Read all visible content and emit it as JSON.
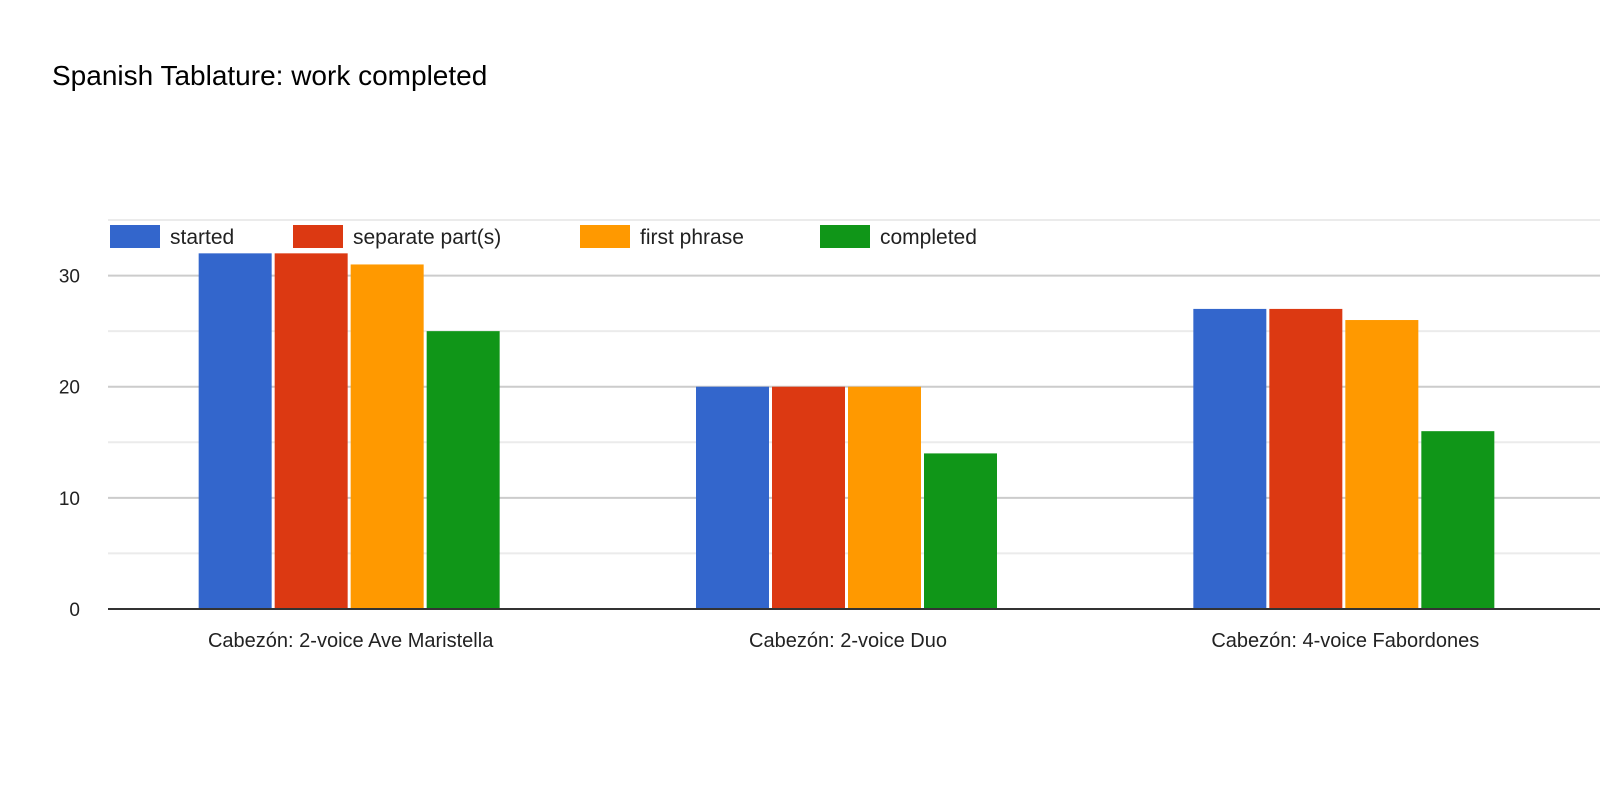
{
  "chart_data": {
    "type": "bar",
    "title": "Spanish Tablature: work completed",
    "categories": [
      "Cabezón: 2-voice Ave Maristella",
      "Cabezón: 2-voice Duo",
      "Cabezón: 4-voice Fabordones"
    ],
    "series": [
      {
        "name": "started",
        "color": "#3366cc",
        "values": [
          32,
          20,
          27
        ]
      },
      {
        "name": "separate part(s)",
        "color": "#dc3912",
        "values": [
          32,
          20,
          27
        ]
      },
      {
        "name": "first phrase",
        "color": "#ff9900",
        "values": [
          31,
          20,
          26
        ]
      },
      {
        "name": "completed",
        "color": "#109618",
        "values": [
          25,
          14,
          16
        ]
      }
    ],
    "ylim": [
      0,
      35
    ],
    "yticks": [
      "0",
      "10",
      "20",
      "30"
    ],
    "xlabel": "",
    "ylabel": "",
    "grid": true,
    "legend": "top-left"
  }
}
